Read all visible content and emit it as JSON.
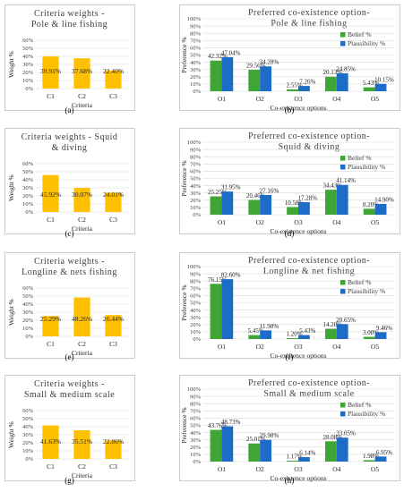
{
  "colors": {
    "weight": "#FFC000",
    "belief": "#3FA535",
    "plausibility": "#1C6CC8",
    "grid": "#D9D9D9",
    "frame": "#BFBFBF"
  },
  "chart_data": [
    {
      "id": "a",
      "type": "bar",
      "panel_label": "(a)",
      "title_lines": [
        "Criteria weights -",
        "Pole & line fishing"
      ],
      "xlabel": "Criteria",
      "ylabel": "Weight %",
      "ylim": [
        0,
        60
      ],
      "yticks": [
        "0%",
        "10%",
        "20%",
        "30%",
        "40%",
        "50%",
        "60%"
      ],
      "categories": [
        "C1",
        "C2",
        "C3"
      ],
      "values": [
        39.91,
        37.68,
        22.4
      ],
      "data_labels": [
        "39.91%",
        "37.68%",
        "22.40%"
      ]
    },
    {
      "id": "b",
      "type": "bar",
      "panel_label": "(b)",
      "title_lines": [
        "Preferred co-existence option-",
        "Pole & line fishing"
      ],
      "xlabel": "Co-existence options",
      "ylabel": "Preference %",
      "ylim": [
        0,
        100
      ],
      "yticks": [
        "0%",
        "10%",
        "20%",
        "30%",
        "40%",
        "50%",
        "60%",
        "70%",
        "80%",
        "90%",
        "100%"
      ],
      "categories": [
        "O1",
        "O2",
        "O3",
        "O4",
        "O5"
      ],
      "series": [
        {
          "name": "Belief %",
          "values": [
            42.32,
            29.56,
            2.55,
            20.13,
            5.43
          ],
          "labels": [
            "42.32%",
            "29.56%",
            "2.55%",
            "20.13%",
            "5.43%"
          ]
        },
        {
          "name": "Plausibility %",
          "values": [
            47.04,
            34.28,
            7.26,
            24.85,
            10.15
          ],
          "labels": [
            "47.04%",
            "34.28%",
            "7.26%",
            "24.85%",
            "10.15%"
          ]
        }
      ]
    },
    {
      "id": "c",
      "type": "bar",
      "panel_label": "(c)",
      "title_lines": [
        "Criteria weights - Squid",
        "& diving"
      ],
      "xlabel": "Criteria",
      "ylabel": "Weight %",
      "ylim": [
        0,
        60
      ],
      "yticks": [
        "0%",
        "10%",
        "20%",
        "30%",
        "40%",
        "50%",
        "60%"
      ],
      "categories": [
        "C1",
        "C2",
        "C3"
      ],
      "values": [
        45.92,
        30.07,
        24.01
      ],
      "data_labels": [
        "45.92%",
        "30.07%",
        "24.01%"
      ]
    },
    {
      "id": "d",
      "type": "bar",
      "panel_label": "(d)",
      "title_lines": [
        "Preferred co-existence option-",
        "Squid & diving"
      ],
      "xlabel": "Co-existence options",
      "ylabel": "Preference %",
      "ylim": [
        0,
        100
      ],
      "yticks": [
        "0%",
        "10%",
        "20%",
        "30%",
        "40%",
        "50%",
        "60%",
        "70%",
        "80%",
        "90%",
        "100%"
      ],
      "categories": [
        "O1",
        "O2",
        "O3",
        "O4",
        "O5"
      ],
      "series": [
        {
          "name": "Belief %",
          "values": [
            25.25,
            20.46,
            10.58,
            34.43,
            8.2
          ],
          "labels": [
            "25.25%",
            "20.46%",
            "10.58%",
            "34.43%",
            "8.20%"
          ]
        },
        {
          "name": "Plausibility %",
          "values": [
            31.95,
            27.16,
            17.28,
            41.14,
            14.9
          ],
          "labels": [
            "31.95%",
            "27.16%",
            "17.28%",
            "41.14%",
            "14.90%"
          ]
        }
      ]
    },
    {
      "id": "e",
      "type": "bar",
      "panel_label": "(e)",
      "title_lines": [
        "Criteria weights -",
        "Longline & nets fishing"
      ],
      "xlabel": "Criteria",
      "ylabel": "Weight %",
      "ylim": [
        0,
        60
      ],
      "yticks": [
        "0%",
        "10%",
        "20%",
        "30%",
        "40%",
        "50%",
        "60%"
      ],
      "categories": [
        "C1",
        "C2",
        "C3"
      ],
      "values": [
        25.29,
        48.26,
        26.44
      ],
      "data_labels": [
        "25.29%",
        "48.26%",
        "26.44%"
      ]
    },
    {
      "id": "f",
      "type": "bar",
      "panel_label": "(f)",
      "title_lines": [
        "Preferred co-existence option-",
        "Longline & net fishing"
      ],
      "xlabel": "Co-existence options",
      "ylabel": "Preference %",
      "ylim": [
        0,
        100
      ],
      "yticks": [
        "0%",
        "10%",
        "20%",
        "30%",
        "40%",
        "50%",
        "60%",
        "70%",
        "80%",
        "90%",
        "100%"
      ],
      "categories": [
        "O1",
        "O2",
        "O3",
        "O4",
        "O5"
      ],
      "series": [
        {
          "name": "Belief %",
          "values": [
            76.15,
            5.45,
            1.2,
            14.2,
            3.0
          ],
          "labels": [
            "76.15%",
            "5.45%",
            "1.20%",
            "14.20%",
            "3.00%"
          ]
        },
        {
          "name": "Plausibility %",
          "values": [
            82.6,
            11.9,
            5.43,
            20.65,
            9.46
          ],
          "labels": [
            "82.60%",
            "11.90%",
            "5.43%",
            "20.65%",
            "9.46%"
          ]
        }
      ]
    },
    {
      "id": "g",
      "type": "bar",
      "panel_label": "(g)",
      "title_lines": [
        "Criteria weights -",
        "Small & medium scale"
      ],
      "xlabel": "Criteria",
      "ylabel": "Weight %",
      "ylim": [
        0,
        60
      ],
      "yticks": [
        "0%",
        "10%",
        "20%",
        "30%",
        "40%",
        "50%",
        "60%"
      ],
      "categories": [
        "C1",
        "C2",
        "C3"
      ],
      "values": [
        41.63,
        35.51,
        22.86
      ],
      "data_labels": [
        "41.63%",
        "35.51%",
        "22.86%"
      ]
    },
    {
      "id": "h",
      "type": "bar",
      "panel_label": "(h)",
      "title_lines": [
        "Preferred co-existence option-",
        "Small & medium scale"
      ],
      "xlabel": "Co-existence options",
      "ylabel": "Preference %",
      "ylim": [
        0,
        100
      ],
      "yticks": [
        "0%",
        "10%",
        "20%",
        "30%",
        "40%",
        "50%",
        "60%",
        "70%",
        "80%",
        "90%",
        "100%"
      ],
      "categories": [
        "O1",
        "O2",
        "O3",
        "O4",
        "O5"
      ],
      "series": [
        {
          "name": "Belief %",
          "values": [
            43.76,
            25.01,
            1.17,
            28.08,
            1.98
          ],
          "labels": [
            "43.76%",
            "25.01%",
            "1.17%",
            "28.08%",
            "1.98%"
          ]
        },
        {
          "name": "Plausibility %",
          "values": [
            48.73,
            29.98,
            6.14,
            33.05,
            6.95
          ],
          "labels": [
            "48.73%",
            "29.98%",
            "6.14%",
            "33.05%",
            "6.95%"
          ]
        }
      ]
    }
  ]
}
